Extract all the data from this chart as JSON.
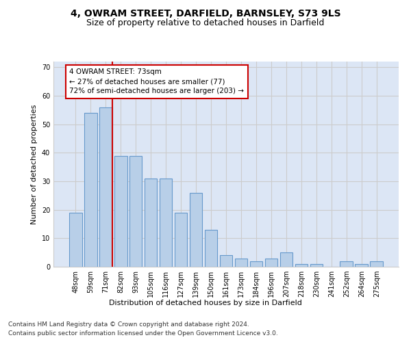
{
  "title": "4, OWRAM STREET, DARFIELD, BARNSLEY, S73 9LS",
  "subtitle": "Size of property relative to detached houses in Darfield",
  "xlabel": "Distribution of detached houses by size in Darfield",
  "ylabel": "Number of detached properties",
  "categories": [
    "48sqm",
    "59sqm",
    "71sqm",
    "82sqm",
    "93sqm",
    "105sqm",
    "116sqm",
    "127sqm",
    "139sqm",
    "150sqm",
    "161sqm",
    "173sqm",
    "184sqm",
    "196sqm",
    "207sqm",
    "218sqm",
    "230sqm",
    "241sqm",
    "252sqm",
    "264sqm",
    "275sqm"
  ],
  "values": [
    19,
    54,
    56,
    39,
    39,
    31,
    31,
    19,
    26,
    13,
    4,
    3,
    2,
    3,
    5,
    1,
    1,
    0,
    2,
    1,
    2
  ],
  "bar_color": "#b8cfe8",
  "bar_edge_color": "#6699cc",
  "bar_edge_width": 0.8,
  "ylim": [
    0,
    72
  ],
  "yticks": [
    0,
    10,
    20,
    30,
    40,
    50,
    60,
    70
  ],
  "grid_color": "#cccccc",
  "background_color": "#dce6f5",
  "annotation_text": "4 OWRAM STREET: 73sqm\n← 27% of detached houses are smaller (77)\n72% of semi-detached houses are larger (203) →",
  "annotation_box_color": "#ffffff",
  "annotation_box_edge_color": "#cc0000",
  "vline_x_idx": 2,
  "vline_color": "#cc0000",
  "footer_line1": "Contains HM Land Registry data © Crown copyright and database right 2024.",
  "footer_line2": "Contains public sector information licensed under the Open Government Licence v3.0.",
  "title_fontsize": 10,
  "subtitle_fontsize": 9,
  "axis_label_fontsize": 8,
  "tick_fontsize": 7,
  "annotation_fontsize": 7.5,
  "footer_fontsize": 6.5
}
